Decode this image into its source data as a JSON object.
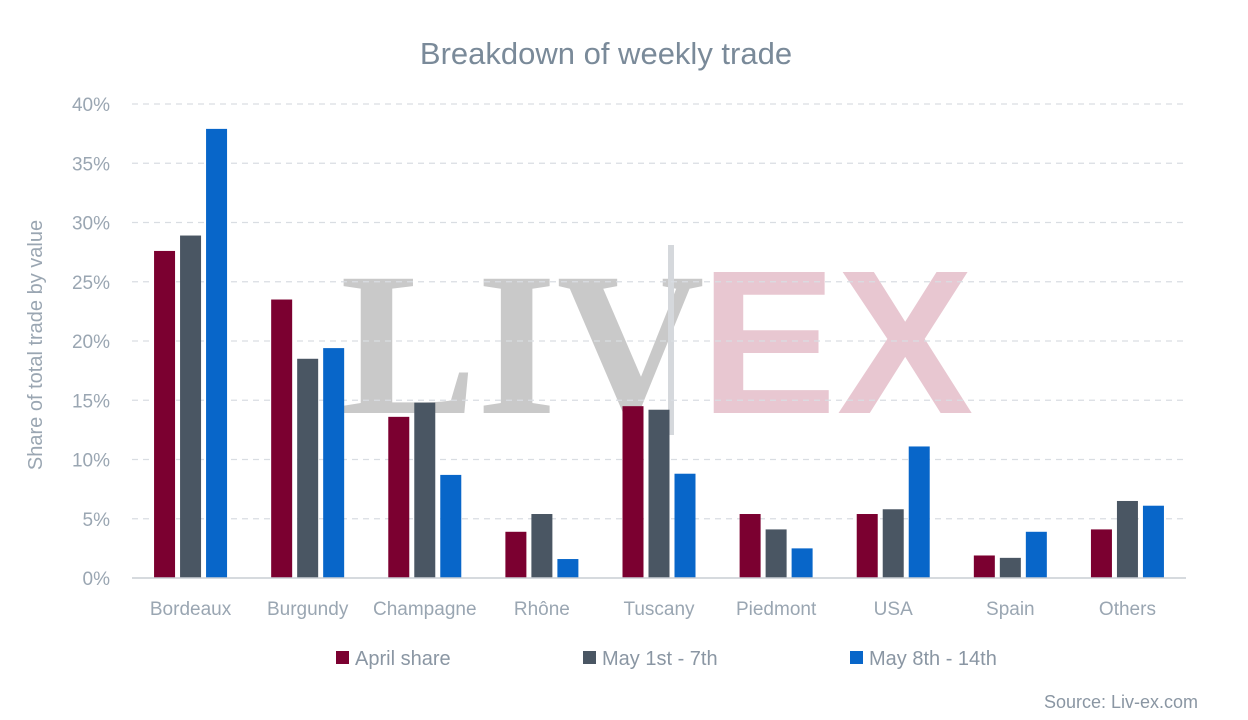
{
  "source": "Source: Liv-ex.com",
  "watermark": {
    "left": "LIV",
    "right": "EX"
  },
  "chart_data": {
    "type": "bar",
    "title": "Breakdown of weekly trade",
    "xlabel": "",
    "ylabel": "Share of total trade by value",
    "ylim": [
      0,
      40
    ],
    "yticks": [
      0,
      5,
      10,
      15,
      20,
      25,
      30,
      35,
      40
    ],
    "ytick_labels": [
      "0%",
      "5%",
      "10%",
      "15%",
      "20%",
      "25%",
      "30%",
      "35%",
      "40%"
    ],
    "grid": "horizontal dashed",
    "legend_position": "bottom",
    "categories": [
      "Bordeaux",
      "Burgundy",
      "Champagne",
      "Rhône",
      "Tuscany",
      "Piedmont",
      "USA",
      "Spain",
      "Others"
    ],
    "series": [
      {
        "name": "April share",
        "color": "#7b0030",
        "values": [
          27.6,
          23.5,
          13.6,
          3.9,
          14.5,
          5.4,
          5.4,
          1.9,
          4.1
        ]
      },
      {
        "name": "May 1st - 7th",
        "color": "#4a5663",
        "values": [
          28.9,
          18.5,
          14.8,
          5.4,
          14.2,
          4.1,
          5.8,
          1.7,
          6.5
        ]
      },
      {
        "name": "May 8th - 14th",
        "color": "#0866c9",
        "values": [
          37.9,
          19.4,
          8.7,
          1.6,
          8.8,
          2.5,
          11.1,
          3.9,
          6.1
        ]
      }
    ]
  }
}
